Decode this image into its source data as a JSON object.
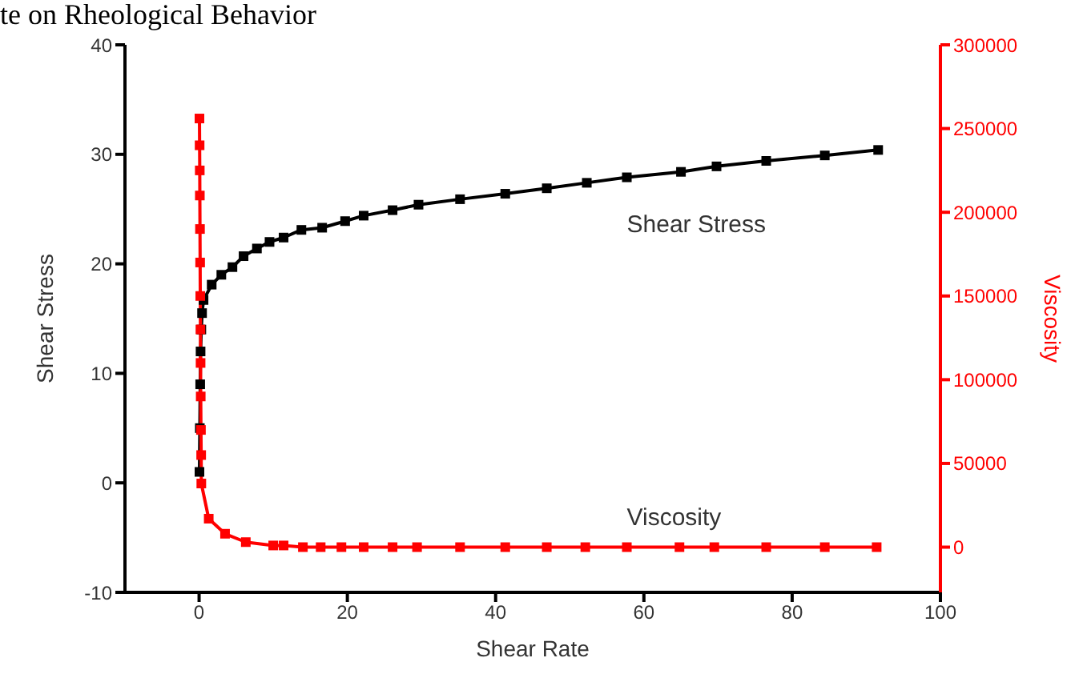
{
  "chart_data": {
    "type": "line",
    "title": "te on Rheological Behavior",
    "xlabel": "Shear Rate",
    "ylabel": "Shear Stress",
    "y2label": "Viscosity",
    "xlim": [
      -10,
      100
    ],
    "xticks": [
      0,
      20,
      40,
      60,
      80,
      100
    ],
    "ylim": [
      -10,
      40
    ],
    "yticks": [
      -10,
      0,
      10,
      20,
      30,
      40
    ],
    "y2lim": [
      -27000,
      300000
    ],
    "y2ticks": [
      0,
      50000,
      100000,
      150000,
      200000,
      250000,
      300000
    ],
    "legend": false,
    "marker": "square",
    "line_style": "solid",
    "grid": false,
    "series": [
      {
        "name": "Shear Stress",
        "color": "#000000",
        "x": [
          0.05,
          0.1,
          0.15,
          0.2,
          0.3,
          0.4,
          0.6,
          1.7,
          3,
          4.5,
          6,
          7.8,
          9.5,
          11.4,
          13.8,
          16.6,
          19.7,
          22.2,
          26.1,
          29.6,
          35.2,
          41.3,
          46.9,
          52.3,
          57.7,
          65,
          69.8,
          76.5,
          84.4,
          91.6
        ],
        "values": [
          1,
          5,
          9,
          12,
          14,
          15.5,
          16.7,
          18.1,
          19,
          19.7,
          20.7,
          21.4,
          22,
          22.4,
          23.1,
          23.3,
          23.9,
          24.4,
          24.9,
          25.4,
          25.9,
          26.4,
          26.9,
          27.4,
          27.9,
          28.4,
          28.9,
          29.4,
          29.9,
          30.4
        ]
      },
      {
        "name": "Viscosity",
        "color": "#ff0000",
        "axis": "y2",
        "x": [
          0.05,
          0.07,
          0.09,
          0.1,
          0.12,
          0.14,
          0.16,
          0.18,
          0.2,
          0.22,
          0.25,
          0.28,
          0.3,
          1.3,
          3.5,
          6.3,
          10,
          11.4,
          14,
          16.4,
          19.2,
          22.2,
          26.1,
          29.4,
          35.2,
          41.3,
          46.9,
          52.1,
          57.7,
          64.8,
          69.5,
          76.5,
          84.4,
          91.4
        ],
        "values": [
          256000,
          240000,
          225000,
          210000,
          190000,
          170000,
          150000,
          130000,
          110000,
          90000,
          70000,
          55000,
          38000,
          17000,
          8000,
          3000,
          1000,
          1000,
          0,
          0,
          0,
          0,
          0,
          0,
          0,
          0,
          0,
          0,
          0,
          0,
          0,
          0,
          0,
          0
        ]
      }
    ]
  }
}
